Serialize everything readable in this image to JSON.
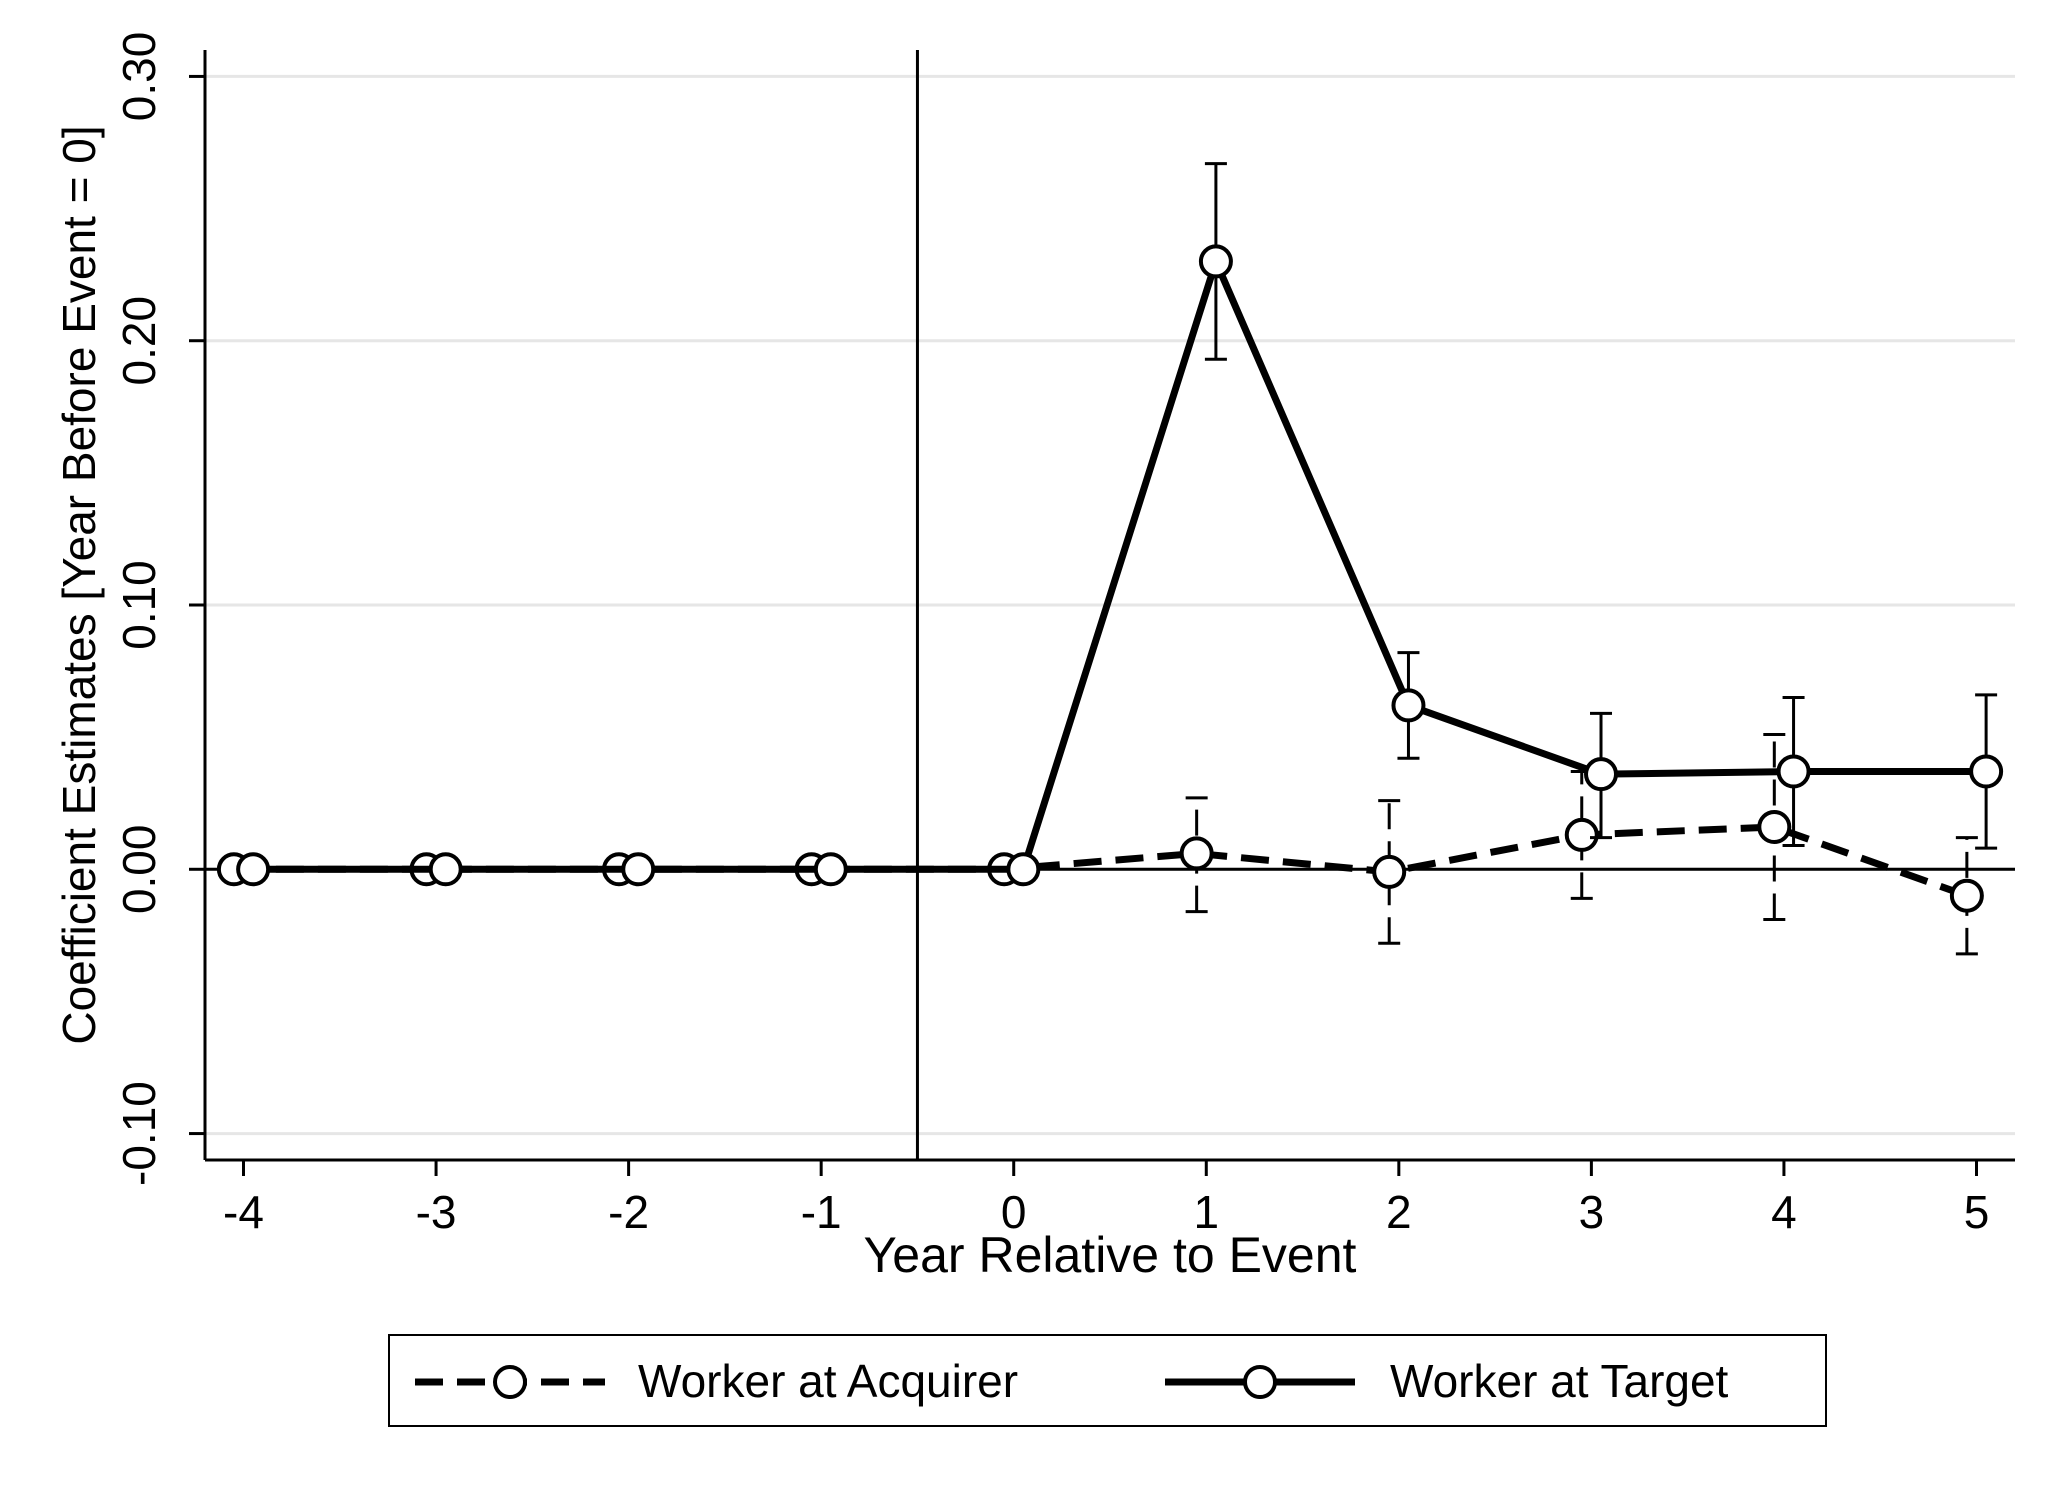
{
  "chart_data": {
    "type": "line",
    "title": "",
    "xlabel": "Year Relative to Event",
    "ylabel": "Coefficient Estimates [Year Before Event = 0]",
    "xlim": [
      -4.2,
      5.2
    ],
    "ylim": [
      -0.11,
      0.31
    ],
    "x_ticks": [
      -4,
      -3,
      -2,
      -1,
      0,
      1,
      2,
      3,
      4,
      5
    ],
    "x_tick_labels": [
      "-4",
      "-3",
      "-2",
      "-1",
      "0",
      "1",
      "2",
      "3",
      "4",
      "5"
    ],
    "y_ticks": [
      -0.1,
      0.0,
      0.1,
      0.2,
      0.3
    ],
    "y_tick_labels": [
      "-0.10",
      "0.00",
      "0.10",
      "0.20",
      "0.30"
    ],
    "grid": "horizontal",
    "event_line_x": -0.5,
    "zero_line_y": 0,
    "legend_position": "bottom",
    "x": [
      -4,
      -3,
      -2,
      -1,
      0,
      1,
      2,
      3,
      4,
      5
    ],
    "series": [
      {
        "name": "Worker at Acquirer",
        "line_style": "dashed",
        "x_offset": -0.05,
        "values": [
          0,
          0,
          0,
          0,
          0,
          0.006,
          -0.001,
          0.013,
          0.016,
          -0.01
        ],
        "ci_low": [
          null,
          null,
          null,
          null,
          null,
          -0.016,
          -0.028,
          -0.011,
          -0.019,
          -0.032
        ],
        "ci_high": [
          null,
          null,
          null,
          null,
          null,
          0.027,
          0.026,
          0.037,
          0.051,
          0.012
        ]
      },
      {
        "name": "Worker at Target",
        "line_style": "solid",
        "x_offset": 0.05,
        "values": [
          0,
          0,
          0,
          0,
          0,
          0.23,
          0.062,
          0.036,
          0.037,
          0.037
        ],
        "ci_low": [
          null,
          null,
          null,
          null,
          null,
          0.193,
          0.042,
          0.012,
          0.009,
          0.008
        ],
        "ci_high": [
          null,
          null,
          null,
          null,
          null,
          0.267,
          0.082,
          0.059,
          0.065,
          0.066
        ]
      }
    ]
  },
  "colors": {
    "series_line": "#000000",
    "grid": "#e6e6e6",
    "axis": "#000000",
    "background": "#ffffff"
  }
}
